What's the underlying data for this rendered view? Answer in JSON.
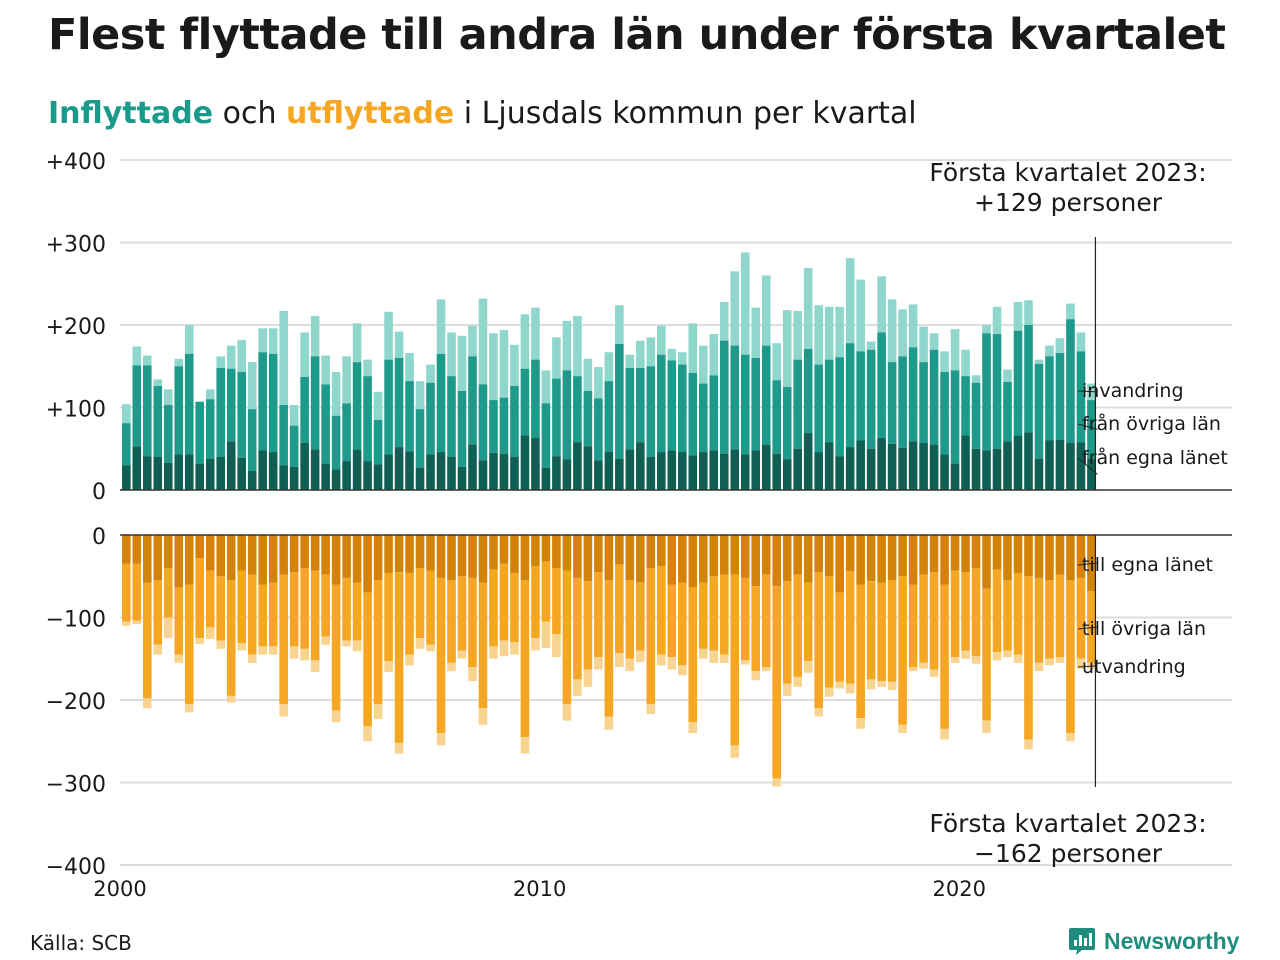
{
  "title": "Flest flyttade till andra län under första kvartalet",
  "subtitle": {
    "in_word": "Inflyttade",
    "mid": " och ",
    "out_word": "utflyttade",
    "rest": " i Ljusdals kommun per kvartal"
  },
  "source": "Källa: SCB",
  "logo": "Newsworthy",
  "colors": {
    "in_own": "#0f5f55",
    "in_other": "#1e9a8b",
    "in_imm": "#8fd7cc",
    "out_own": "#d4830a",
    "out_other": "#f5a623",
    "out_emi": "#f9d491",
    "grid": "#dddddd",
    "axis": "#333333"
  },
  "chart_data": {
    "type": "bar",
    "stacked": true,
    "x_range": [
      2000,
      2026.5
    ],
    "x_ticks": [
      "2000",
      "2010",
      "2020"
    ],
    "top_panel": {
      "ylim": [
        0,
        400
      ],
      "y_ticks": [
        "0",
        "+100",
        "+200",
        "+300",
        "+400"
      ],
      "labels": [
        "invandring",
        "från övriga län",
        "från egna länet"
      ],
      "annotation": [
        "Första kvartalet 2023:",
        "+129 personer"
      ],
      "series_order": [
        "från egna länet",
        "från övriga län",
        "invandring"
      ],
      "totals": [
        104,
        174,
        163,
        134,
        122,
        159,
        200,
        107,
        122,
        162,
        175,
        182,
        155,
        196,
        196,
        217,
        103,
        191,
        211,
        163,
        143,
        162,
        202,
        158,
        119,
        216,
        192,
        166,
        132,
        152,
        231,
        191,
        187,
        199,
        232,
        190,
        194,
        176,
        213,
        221,
        145,
        185,
        205,
        211,
        159,
        149,
        167,
        224,
        164,
        181,
        185,
        199,
        171,
        167,
        202,
        175,
        189,
        228,
        265,
        288,
        221,
        260,
        178,
        218,
        217,
        269,
        224,
        222,
        222,
        281,
        255,
        180,
        259,
        231,
        219,
        225,
        198,
        190,
        168,
        195,
        170,
        139,
        200,
        222,
        146,
        228,
        230,
        158,
        175,
        184,
        226,
        191,
        129
      ],
      "own": [
        30,
        53,
        41,
        40,
        33,
        43,
        43,
        32,
        38,
        40,
        59,
        39,
        23,
        48,
        46,
        30,
        28,
        57,
        49,
        32,
        25,
        35,
        49,
        35,
        31,
        43,
        52,
        47,
        27,
        43,
        46,
        40,
        28,
        55,
        36,
        45,
        44,
        40,
        66,
        63,
        27,
        41,
        37,
        58,
        53,
        36,
        46,
        38,
        49,
        58,
        40,
        46,
        48,
        46,
        42,
        46,
        48,
        44,
        49,
        43,
        48,
        55,
        44,
        37,
        50,
        69,
        46,
        58,
        41,
        52,
        60,
        50,
        63,
        56,
        51,
        59,
        57,
        55,
        43,
        32,
        66,
        50,
        48,
        50,
        59,
        66,
        70,
        38,
        60,
        61,
        57,
        58,
        38
      ],
      "other": [
        81,
        151,
        151,
        126,
        103,
        150,
        165,
        107,
        110,
        148,
        147,
        143,
        98,
        167,
        165,
        103,
        78,
        137,
        162,
        128,
        90,
        105,
        155,
        138,
        85,
        158,
        160,
        132,
        98,
        130,
        165,
        138,
        120,
        162,
        128,
        109,
        112,
        126,
        147,
        158,
        105,
        135,
        145,
        138,
        120,
        111,
        132,
        177,
        148,
        148,
        150,
        164,
        157,
        152,
        142,
        129,
        139,
        181,
        175,
        164,
        160,
        175,
        133,
        125,
        158,
        171,
        152,
        158,
        161,
        178,
        168,
        170,
        191,
        155,
        162,
        173,
        155,
        170,
        143,
        145,
        138,
        130,
        190,
        189,
        131,
        193,
        200,
        153,
        162,
        166,
        207,
        168,
        109
      ]
    },
    "bottom_panel": {
      "ylim": [
        -400,
        0
      ],
      "y_ticks": [
        "0",
        "−100",
        "−200",
        "−300",
        "−400"
      ],
      "labels": [
        "till egna länet",
        "till övriga län",
        "utvandring"
      ],
      "annotation": [
        "Första kvartalet 2023:",
        "−162 personer"
      ],
      "series_order": [
        "till egna länet",
        "till övriga län",
        "utvandring"
      ],
      "totals": [
        -110,
        -108,
        -210,
        -145,
        -125,
        -155,
        -215,
        -132,
        -126,
        -138,
        -203,
        -140,
        -155,
        -145,
        -145,
        -220,
        -150,
        -152,
        -166,
        -133,
        -227,
        -135,
        -141,
        -250,
        -223,
        -166,
        -265,
        -158,
        -138,
        -141,
        -255,
        -165,
        -150,
        -177,
        -230,
        -150,
        -147,
        -145,
        -265,
        -140,
        -137,
        -148,
        -225,
        -195,
        -184,
        -163,
        -236,
        -160,
        -165,
        -154,
        -217,
        -158,
        -163,
        -170,
        -240,
        -150,
        -155,
        -155,
        -270,
        -157,
        -176,
        -165,
        -305,
        -195,
        -184,
        -167,
        -220,
        -196,
        -186,
        -192,
        -235,
        -187,
        -184,
        -188,
        -240,
        -165,
        -162,
        -172,
        -248,
        -155,
        -150,
        -156,
        -240,
        -152,
        -148,
        -155,
        -260,
        -165,
        -158,
        -155,
        -250,
        -162,
        -162
      ],
      "own": [
        -35,
        -35,
        -58,
        -55,
        -40,
        -63,
        -60,
        -28,
        -43,
        -50,
        -55,
        -43,
        -48,
        -60,
        -58,
        -48,
        -45,
        -40,
        -43,
        -48,
        -60,
        -52,
        -58,
        -70,
        -55,
        -46,
        -45,
        -46,
        -40,
        -43,
        -52,
        -55,
        -50,
        -52,
        -58,
        -42,
        -35,
        -46,
        -55,
        -38,
        -32,
        -40,
        -43,
        -52,
        -56,
        -45,
        -55,
        -36,
        -55,
        -57,
        -40,
        -38,
        -60,
        -58,
        -63,
        -58,
        -50,
        -48,
        -48,
        -52,
        -62,
        -48,
        -62,
        -56,
        -48,
        -58,
        -45,
        -50,
        -70,
        -44,
        -60,
        -56,
        -58,
        -55,
        -50,
        -60,
        -48,
        -45,
        -60,
        -43,
        -45,
        -40,
        -65,
        -42,
        -55,
        -46,
        -50,
        -52,
        -55,
        -48,
        -55,
        -52,
        -68
      ],
      "other": [
        -105,
        -104,
        -198,
        -133,
        -100,
        -145,
        -205,
        -125,
        -112,
        -128,
        -195,
        -131,
        -145,
        -135,
        -135,
        -205,
        -135,
        -138,
        -152,
        -123,
        -213,
        -128,
        -128,
        -232,
        -205,
        -153,
        -252,
        -145,
        -125,
        -133,
        -240,
        -155,
        -140,
        -160,
        -210,
        -135,
        -128,
        -130,
        -245,
        -125,
        -105,
        -120,
        -205,
        -175,
        -163,
        -148,
        -220,
        -143,
        -150,
        -140,
        -205,
        -145,
        -148,
        -158,
        -227,
        -138,
        -140,
        -145,
        -255,
        -152,
        -165,
        -160,
        -295,
        -180,
        -172,
        -153,
        -210,
        -185,
        -178,
        -180,
        -222,
        -175,
        -177,
        -178,
        -230,
        -160,
        -155,
        -163,
        -235,
        -148,
        -140,
        -147,
        -225,
        -142,
        -140,
        -145,
        -248,
        -155,
        -150,
        -148,
        -240,
        -150,
        -155
      ]
    }
  }
}
